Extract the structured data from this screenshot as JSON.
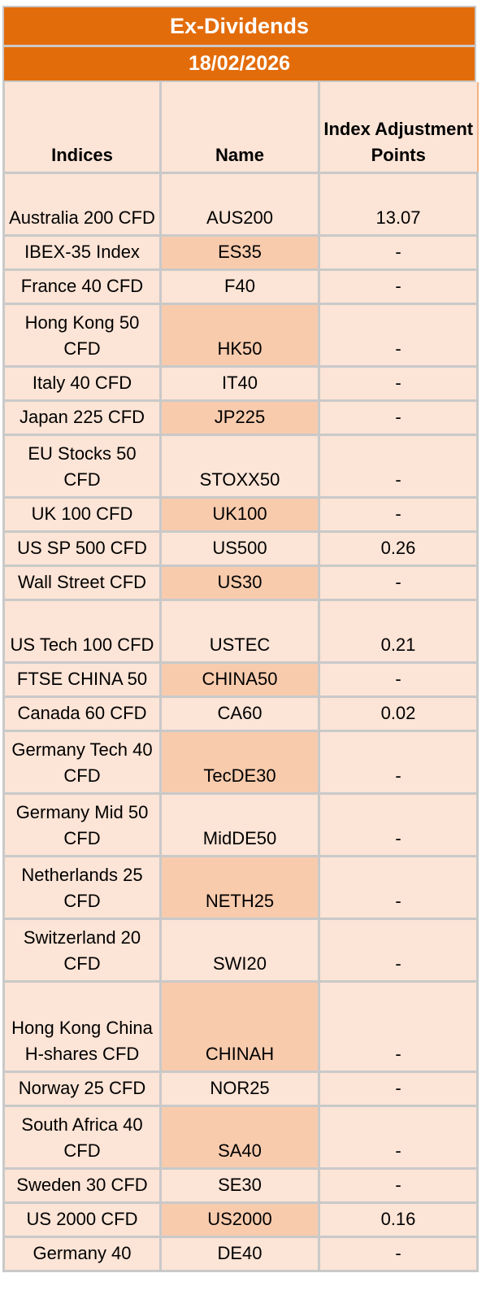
{
  "title": "Ex-Dividends",
  "date": "18/02/2026",
  "headers": {
    "indices": "Indices",
    "name": "Name",
    "points": "Index Adjustment Points"
  },
  "rows": [
    {
      "index": "Australia 200 CFD",
      "name": "AUS200",
      "points": "13.07"
    },
    {
      "index": "IBEX-35 Index",
      "name": "ES35",
      "points": "-"
    },
    {
      "index": "France 40 CFD",
      "name": "F40",
      "points": "-"
    },
    {
      "index": "Hong Kong 50 CFD",
      "name": "HK50",
      "points": "-"
    },
    {
      "index": "Italy 40 CFD",
      "name": "IT40",
      "points": "-"
    },
    {
      "index": "Japan 225 CFD",
      "name": "JP225",
      "points": "-"
    },
    {
      "index": "EU Stocks 50 CFD",
      "name": "STOXX50",
      "points": "-"
    },
    {
      "index": "UK 100 CFD",
      "name": "UK100",
      "points": "-"
    },
    {
      "index": "US SP 500 CFD",
      "name": "US500",
      "points": "0.26"
    },
    {
      "index": "Wall Street CFD",
      "name": "US30",
      "points": "-"
    },
    {
      "index": "US Tech 100 CFD",
      "name": "USTEC",
      "points": "0.21"
    },
    {
      "index": "FTSE CHINA 50",
      "name": "CHINA50",
      "points": "-"
    },
    {
      "index": "Canada 60 CFD",
      "name": "CA60",
      "points": "0.02"
    },
    {
      "index": "Germany Tech 40 CFD",
      "name": "TecDE30",
      "points": "-"
    },
    {
      "index": "Germany Mid 50 CFD",
      "name": "MidDE50",
      "points": "-"
    },
    {
      "index": "Netherlands 25 CFD",
      "name": "NETH25",
      "points": "-"
    },
    {
      "index": "Switzerland 20 CFD",
      "name": "SWI20",
      "points": "-"
    },
    {
      "index": "Hong Kong China H-shares CFD",
      "name": "CHINAH",
      "points": "-"
    },
    {
      "index": "Norway 25 CFD",
      "name": "NOR25",
      "points": "-"
    },
    {
      "index": "South Africa 40 CFD",
      "name": "SA40",
      "points": "-"
    },
    {
      "index": "Sweden 30 CFD",
      "name": "SE30",
      "points": "-"
    },
    {
      "index": "US 2000 CFD",
      "name": "US2000",
      "points": "0.16"
    },
    {
      "index": "Germany 40",
      "name": "DE40",
      "points": "-"
    }
  ]
}
